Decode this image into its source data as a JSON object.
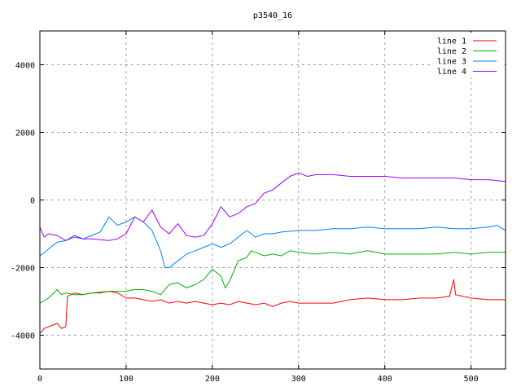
{
  "chart_data": {
    "type": "line",
    "title": "p3540_16",
    "xlabel": "",
    "ylabel": "",
    "xlim": [
      0,
      540
    ],
    "ylim": [
      -5000,
      5000
    ],
    "xticks": [
      0,
      100,
      200,
      300,
      400,
      500
    ],
    "yticks": [
      -4000,
      -2000,
      0,
      2000,
      4000
    ],
    "grid": true,
    "legend_position": "top-right",
    "series": [
      {
        "name": "line 1",
        "color": "#ff0000",
        "x": [
          0,
          5,
          10,
          20,
          25,
          30,
          32,
          40,
          50,
          60,
          70,
          80,
          90,
          100,
          110,
          120,
          130,
          140,
          150,
          160,
          170,
          180,
          190,
          200,
          210,
          220,
          230,
          240,
          250,
          260,
          270,
          280,
          290,
          300,
          320,
          340,
          360,
          380,
          400,
          420,
          440,
          460,
          475,
          480,
          482,
          500,
          520,
          540
        ],
        "y": [
          -3950,
          -3800,
          -3750,
          -3650,
          -3800,
          -3750,
          -2850,
          -2750,
          -2800,
          -2750,
          -2750,
          -2700,
          -2750,
          -2900,
          -2900,
          -2950,
          -3000,
          -2950,
          -3050,
          -3000,
          -3050,
          -3000,
          -3050,
          -3100,
          -3050,
          -3100,
          -3000,
          -3050,
          -3100,
          -3050,
          -3150,
          -3050,
          -3000,
          -3050,
          -3050,
          -3050,
          -2950,
          -2900,
          -2950,
          -2950,
          -2900,
          -2900,
          -2850,
          -2350,
          -2800,
          -2900,
          -2950,
          -2950
        ]
      },
      {
        "name": "line 2",
        "color": "#00b000",
        "x": [
          0,
          10,
          20,
          25,
          30,
          40,
          50,
          60,
          80,
          100,
          110,
          120,
          130,
          140,
          150,
          160,
          170,
          180,
          190,
          200,
          210,
          215,
          220,
          230,
          240,
          245,
          250,
          260,
          270,
          280,
          290,
          300,
          320,
          340,
          360,
          380,
          400,
          420,
          440,
          460,
          480,
          500,
          520,
          540
        ],
        "y": [
          -3050,
          -2900,
          -2650,
          -2800,
          -2750,
          -2800,
          -2800,
          -2750,
          -2700,
          -2700,
          -2650,
          -2650,
          -2700,
          -2800,
          -2500,
          -2450,
          -2600,
          -2500,
          -2350,
          -2050,
          -2250,
          -2600,
          -2400,
          -1800,
          -1700,
          -1500,
          -1550,
          -1650,
          -1600,
          -1650,
          -1500,
          -1550,
          -1600,
          -1550,
          -1600,
          -1500,
          -1600,
          -1600,
          -1600,
          -1600,
          -1550,
          -1600,
          -1550,
          -1550
        ]
      },
      {
        "name": "line 3",
        "color": "#0080ff",
        "x": [
          0,
          10,
          20,
          30,
          40,
          50,
          60,
          70,
          80,
          90,
          100,
          110,
          120,
          130,
          140,
          145,
          150,
          160,
          170,
          180,
          190,
          200,
          210,
          220,
          230,
          240,
          250,
          260,
          270,
          280,
          300,
          320,
          340,
          360,
          380,
          400,
          420,
          440,
          460,
          480,
          500,
          520,
          530,
          540
        ],
        "y": [
          -1650,
          -1450,
          -1250,
          -1200,
          -1100,
          -1150,
          -1050,
          -950,
          -500,
          -750,
          -650,
          -500,
          -650,
          -900,
          -1500,
          -2000,
          -2000,
          -1800,
          -1600,
          -1500,
          -1400,
          -1300,
          -1400,
          -1300,
          -1100,
          -900,
          -1100,
          -1000,
          -1000,
          -950,
          -900,
          -900,
          -850,
          -850,
          -800,
          -850,
          -850,
          -850,
          -800,
          -850,
          -850,
          -800,
          -750,
          -900
        ]
      },
      {
        "name": "line 4",
        "color": "#a000ff",
        "x": [
          0,
          5,
          10,
          20,
          30,
          40,
          50,
          60,
          80,
          90,
          100,
          110,
          120,
          130,
          140,
          150,
          160,
          170,
          180,
          190,
          200,
          210,
          220,
          230,
          240,
          250,
          260,
          270,
          280,
          290,
          300,
          310,
          320,
          340,
          360,
          380,
          400,
          420,
          440,
          460,
          480,
          500,
          520,
          540
        ],
        "y": [
          -800,
          -1100,
          -1000,
          -1050,
          -1200,
          -1050,
          -1150,
          -1150,
          -1200,
          -1150,
          -1000,
          -500,
          -650,
          -300,
          -800,
          -1000,
          -700,
          -1050,
          -1100,
          -1050,
          -700,
          -200,
          -500,
          -400,
          -200,
          -100,
          200,
          300,
          500,
          700,
          800,
          700,
          750,
          750,
          700,
          700,
          700,
          650,
          650,
          650,
          650,
          600,
          600,
          550
        ]
      }
    ]
  }
}
